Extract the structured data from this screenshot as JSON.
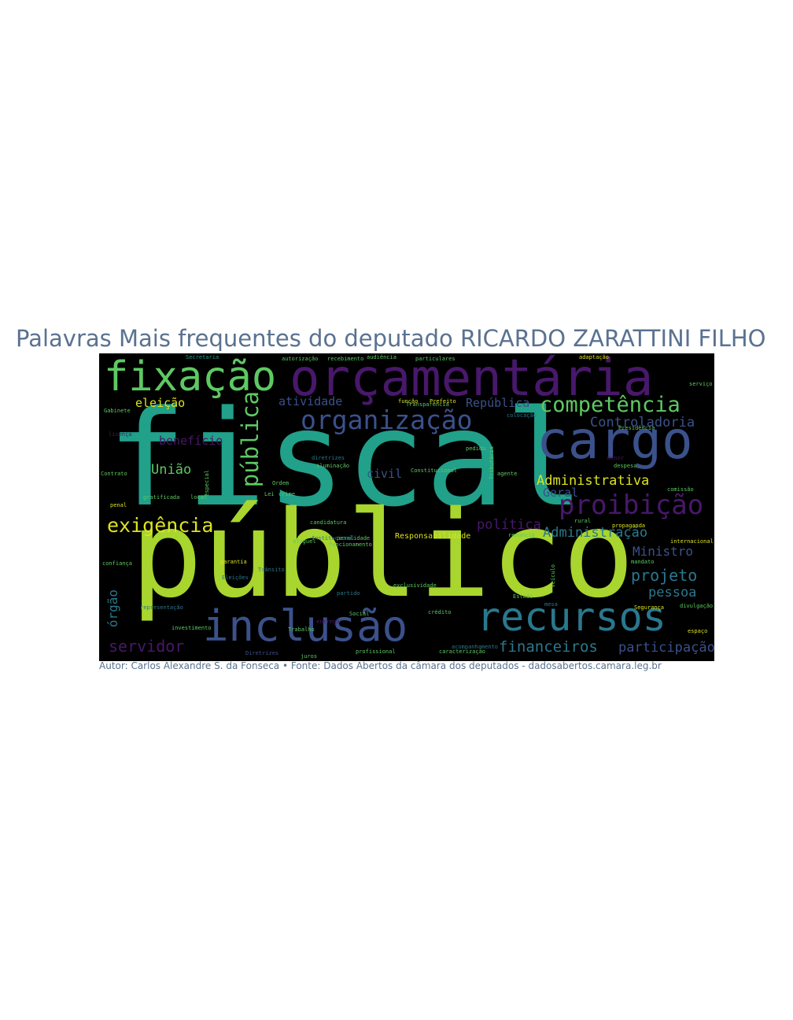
{
  "title": "Palavras Mais frequentes do deputado RICARDO ZARATTINI FILHO",
  "caption": "Autor: Carlos Alexandre S. da Fonseca • Fonte: Dados Abertos da câmara dos deputados - dadosabertos.camara.leg.br",
  "colors": {
    "title": "#5a7290",
    "background": "#000000",
    "teal": "#21a08a",
    "lime": "#a8d52e",
    "purple": "#48186a",
    "blue": "#3b518b",
    "green": "#5ec962",
    "yellow": "#dbe31f",
    "cyan": "#2a788e"
  },
  "words": [
    "fiscal",
    "público",
    "orçamentária",
    "fixação",
    "cargo",
    "inclusão",
    "recursos",
    "organização",
    "competência",
    "proibição",
    "pública",
    "exigência",
    "Controladoria",
    "Administrativa",
    "Administração",
    "financeiros",
    "servidor",
    "participação",
    "projeto",
    "pessoa",
    "Ministro",
    "política",
    "benefício",
    "eleição",
    "União",
    "atividade",
    "República",
    "civil",
    "Geral",
    "Responsabilidade",
    "órgão",
    "Secretaria",
    "Presidência",
    "Gabinete",
    "Eleições",
    "Social",
    "profissional",
    "agente",
    "Estado",
    "crédito",
    "Contrato",
    "Segurança",
    "penal",
    "local",
    "especial",
    "função",
    "Prefeito",
    "licença",
    "Lei",
    "crime",
    "partido",
    "candidatura",
    "mandato",
    "internacional",
    "rural",
    "propaganda",
    "comissão",
    "representação",
    "aluguel",
    "penalidade",
    "funcionamento",
    "recebimento",
    "autorização",
    "adaptação",
    "particulares",
    "audiência",
    "Constitucional",
    "Tributária",
    "Trânsito",
    "colocação",
    "pedido",
    "confiança",
    "investimento",
    "Diretrizes",
    "Ordem",
    "juros",
    "Trabalho",
    "entrega",
    "divulgação",
    "espaço",
    "mesa",
    "garantia",
    "Transparência",
    "Institucional",
    "exclusividade",
    "acompanhamento",
    "caracterização",
    "renúncia",
    "gratificada",
    "iluminação",
    "diretrizes",
    "veículo",
    "despesa",
    "menor",
    "serviço"
  ]
}
